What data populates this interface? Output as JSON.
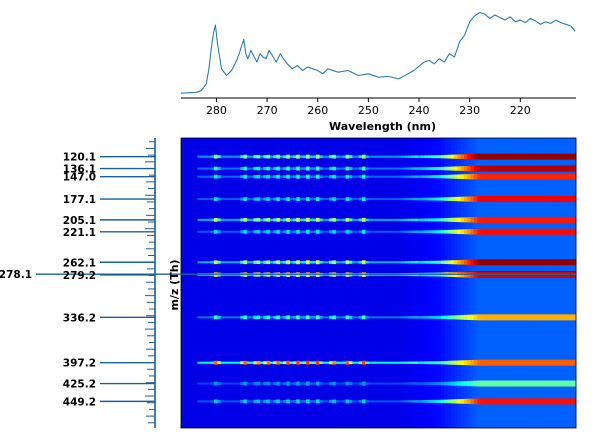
{
  "chart_data": [
    {
      "type": "line",
      "xlabel": "Wavelength (nm)",
      "ylabel": "",
      "x_reversed": true,
      "xlim": [
        287,
        209
      ],
      "xticks": [
        "280",
        "270",
        "260",
        "250",
        "240",
        "230",
        "220"
      ],
      "xtick_values": [
        280,
        270,
        260,
        250,
        240,
        230,
        220
      ],
      "grid": false,
      "color": "#2b7bb9",
      "series": [
        {
          "x": [
            287,
            284,
            283,
            282,
            281.5,
            281,
            280.6,
            280.2,
            279.8,
            279,
            278,
            277,
            276,
            275.5,
            275,
            274.6,
            274.2,
            273.8,
            273.2,
            272.6,
            272,
            271.4,
            270.8,
            270.2,
            269.6,
            269,
            268.2,
            267.4,
            266.8,
            266,
            265,
            264,
            263,
            262,
            261,
            260,
            259,
            258,
            256,
            254,
            252,
            250,
            248,
            246,
            244,
            242.5,
            241,
            240,
            239,
            238,
            237,
            236,
            235,
            234,
            233,
            232,
            231,
            230,
            229,
            228,
            227,
            226,
            225,
            224,
            223,
            222,
            221,
            220,
            219,
            218,
            217,
            216,
            215,
            214,
            213,
            212,
            211,
            210,
            209.2
          ],
          "y": [
            0.01,
            0.02,
            0.04,
            0.12,
            0.3,
            0.55,
            0.72,
            0.82,
            0.6,
            0.3,
            0.22,
            0.28,
            0.4,
            0.48,
            0.58,
            0.65,
            0.48,
            0.42,
            0.52,
            0.45,
            0.38,
            0.48,
            0.44,
            0.42,
            0.52,
            0.46,
            0.38,
            0.48,
            0.42,
            0.36,
            0.3,
            0.34,
            0.28,
            0.32,
            0.3,
            0.28,
            0.24,
            0.3,
            0.26,
            0.28,
            0.22,
            0.24,
            0.2,
            0.21,
            0.18,
            0.23,
            0.28,
            0.33,
            0.38,
            0.4,
            0.36,
            0.42,
            0.38,
            0.48,
            0.44,
            0.62,
            0.7,
            0.86,
            0.93,
            0.97,
            0.95,
            0.9,
            0.94,
            0.91,
            0.88,
            0.92,
            0.86,
            0.88,
            0.85,
            0.9,
            0.87,
            0.83,
            0.86,
            0.84,
            0.88,
            0.85,
            0.83,
            0.81,
            0.75
          ]
        }
      ]
    },
    {
      "type": "heatmap",
      "ylabel": "m/z (Th)",
      "xlabel": "",
      "colormap": "jet",
      "x_reversed": true,
      "xlim": [
        287,
        209
      ],
      "mz_labels": [
        {
          "label": "120.1",
          "mz": 120.1
        },
        {
          "label": "136.1",
          "mz": 136.1
        },
        {
          "label": "147.0",
          "mz": 147.0
        },
        {
          "label": "177.1",
          "mz": 177.1
        },
        {
          "label": "205.1",
          "mz": 205.1
        },
        {
          "label": "221.1",
          "mz": 221.1
        },
        {
          "label": "262.1",
          "mz": 262.1
        },
        {
          "label": "278.1",
          "mz": 278.1
        },
        {
          "label": "279.2",
          "mz": 279.2
        },
        {
          "label": "336.2",
          "mz": 336.2
        },
        {
          "label": "397.2",
          "mz": 397.2
        },
        {
          "label": "425.2",
          "mz": 425.2
        },
        {
          "label": "449.2",
          "mz": 449.2
        }
      ],
      "ion_rows": [
        {
          "mz": 120.1,
          "base": 0.4,
          "uv": 0.8
        },
        {
          "mz": 136.1,
          "base": 0.28,
          "uv": 0.75
        },
        {
          "mz": 147.0,
          "base": 0.25,
          "uv": 0.65
        },
        {
          "mz": 177.1,
          "base": 0.22,
          "uv": 0.7
        },
        {
          "mz": 205.1,
          "base": 0.45,
          "uv": 0.62
        },
        {
          "mz": 221.1,
          "base": 0.22,
          "uv": 0.68
        },
        {
          "mz": 262.1,
          "base": 0.45,
          "uv": 0.75
        },
        {
          "mz": 278.1,
          "base": 0.6,
          "uv": 0.9
        },
        {
          "mz": 279.2,
          "base": 0.45,
          "uv": 0.68
        },
        {
          "mz": 336.2,
          "base": 0.3,
          "uv": 0.5
        },
        {
          "mz": 397.2,
          "base": 0.68,
          "uv": 0.5
        },
        {
          "mz": 425.2,
          "base": 0.15,
          "uv": 0.3
        },
        {
          "mz": 449.2,
          "base": 0.2,
          "uv": 0.68
        }
      ]
    }
  ]
}
